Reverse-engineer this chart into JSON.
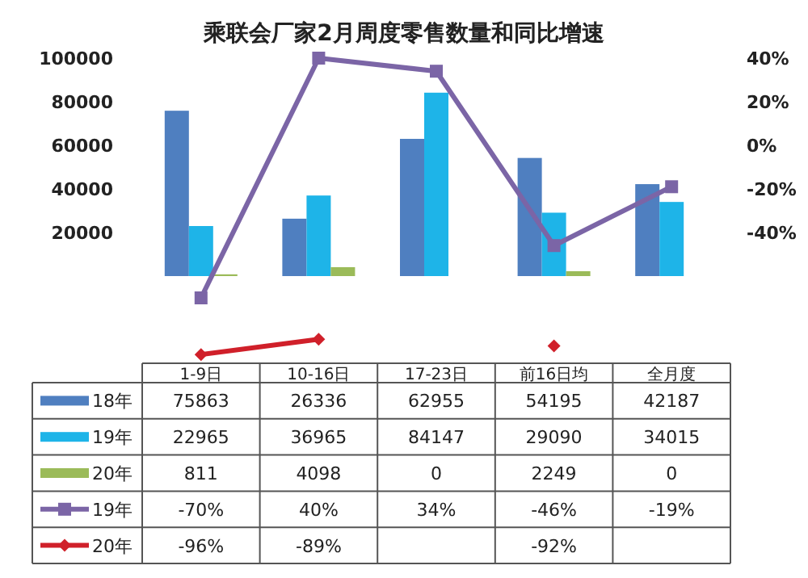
{
  "chart_data": {
    "type": "bar",
    "title": "乘联会厂家2月周度零售数量和同比增速",
    "categories": [
      "1-9日",
      "10-16日",
      "17-23日",
      "前16日均",
      "全月度"
    ],
    "series": [
      {
        "name": "18年",
        "color": "#4f7fc0",
        "values": [
          75863,
          26336,
          62955,
          54195,
          42187
        ],
        "value_labels": [
          "75863",
          "26336",
          "62955",
          "54195",
          "42187"
        ]
      },
      {
        "name": "19年",
        "color": "#1eb4e8",
        "values": [
          22965,
          36965,
          84147,
          29090,
          34015
        ],
        "value_labels": [
          "22965",
          "36965",
          "84147",
          "29090",
          "34015"
        ]
      },
      {
        "name": "20年",
        "color": "#9bbb59",
        "values": [
          811,
          4098,
          0,
          2249,
          0
        ],
        "value_labels": [
          "811",
          "4098",
          "0",
          "2249",
          "0"
        ]
      },
      {
        "name": "19年",
        "type": "line",
        "axis": "y2",
        "marker": "square",
        "color": "#7b65a6",
        "values": [
          -70,
          40,
          34,
          -46,
          -19
        ],
        "value_labels": [
          "-70%",
          "40%",
          "34%",
          "-46%",
          "-19%"
        ]
      },
      {
        "name": "20年",
        "type": "line",
        "axis": "y2",
        "marker": "diamond",
        "color": "#d0202a",
        "values": [
          -96,
          -89,
          null,
          -92,
          null
        ],
        "value_labels": [
          "-96%",
          "-89%",
          null,
          "-92%",
          null
        ]
      }
    ],
    "ylim": [
      -40000,
      100000
    ],
    "yticks": [
      20000,
      40000,
      60000,
      80000,
      100000
    ],
    "y2lim": [
      -100,
      40
    ],
    "y2ticks": [
      {
        "value": -40,
        "label": "-40%"
      },
      {
        "value": -20,
        "label": "-20%"
      },
      {
        "value": 0,
        "label": "0%"
      },
      {
        "value": 20,
        "label": "20%"
      },
      {
        "value": 40,
        "label": "40%"
      }
    ],
    "legend": "bottom"
  }
}
